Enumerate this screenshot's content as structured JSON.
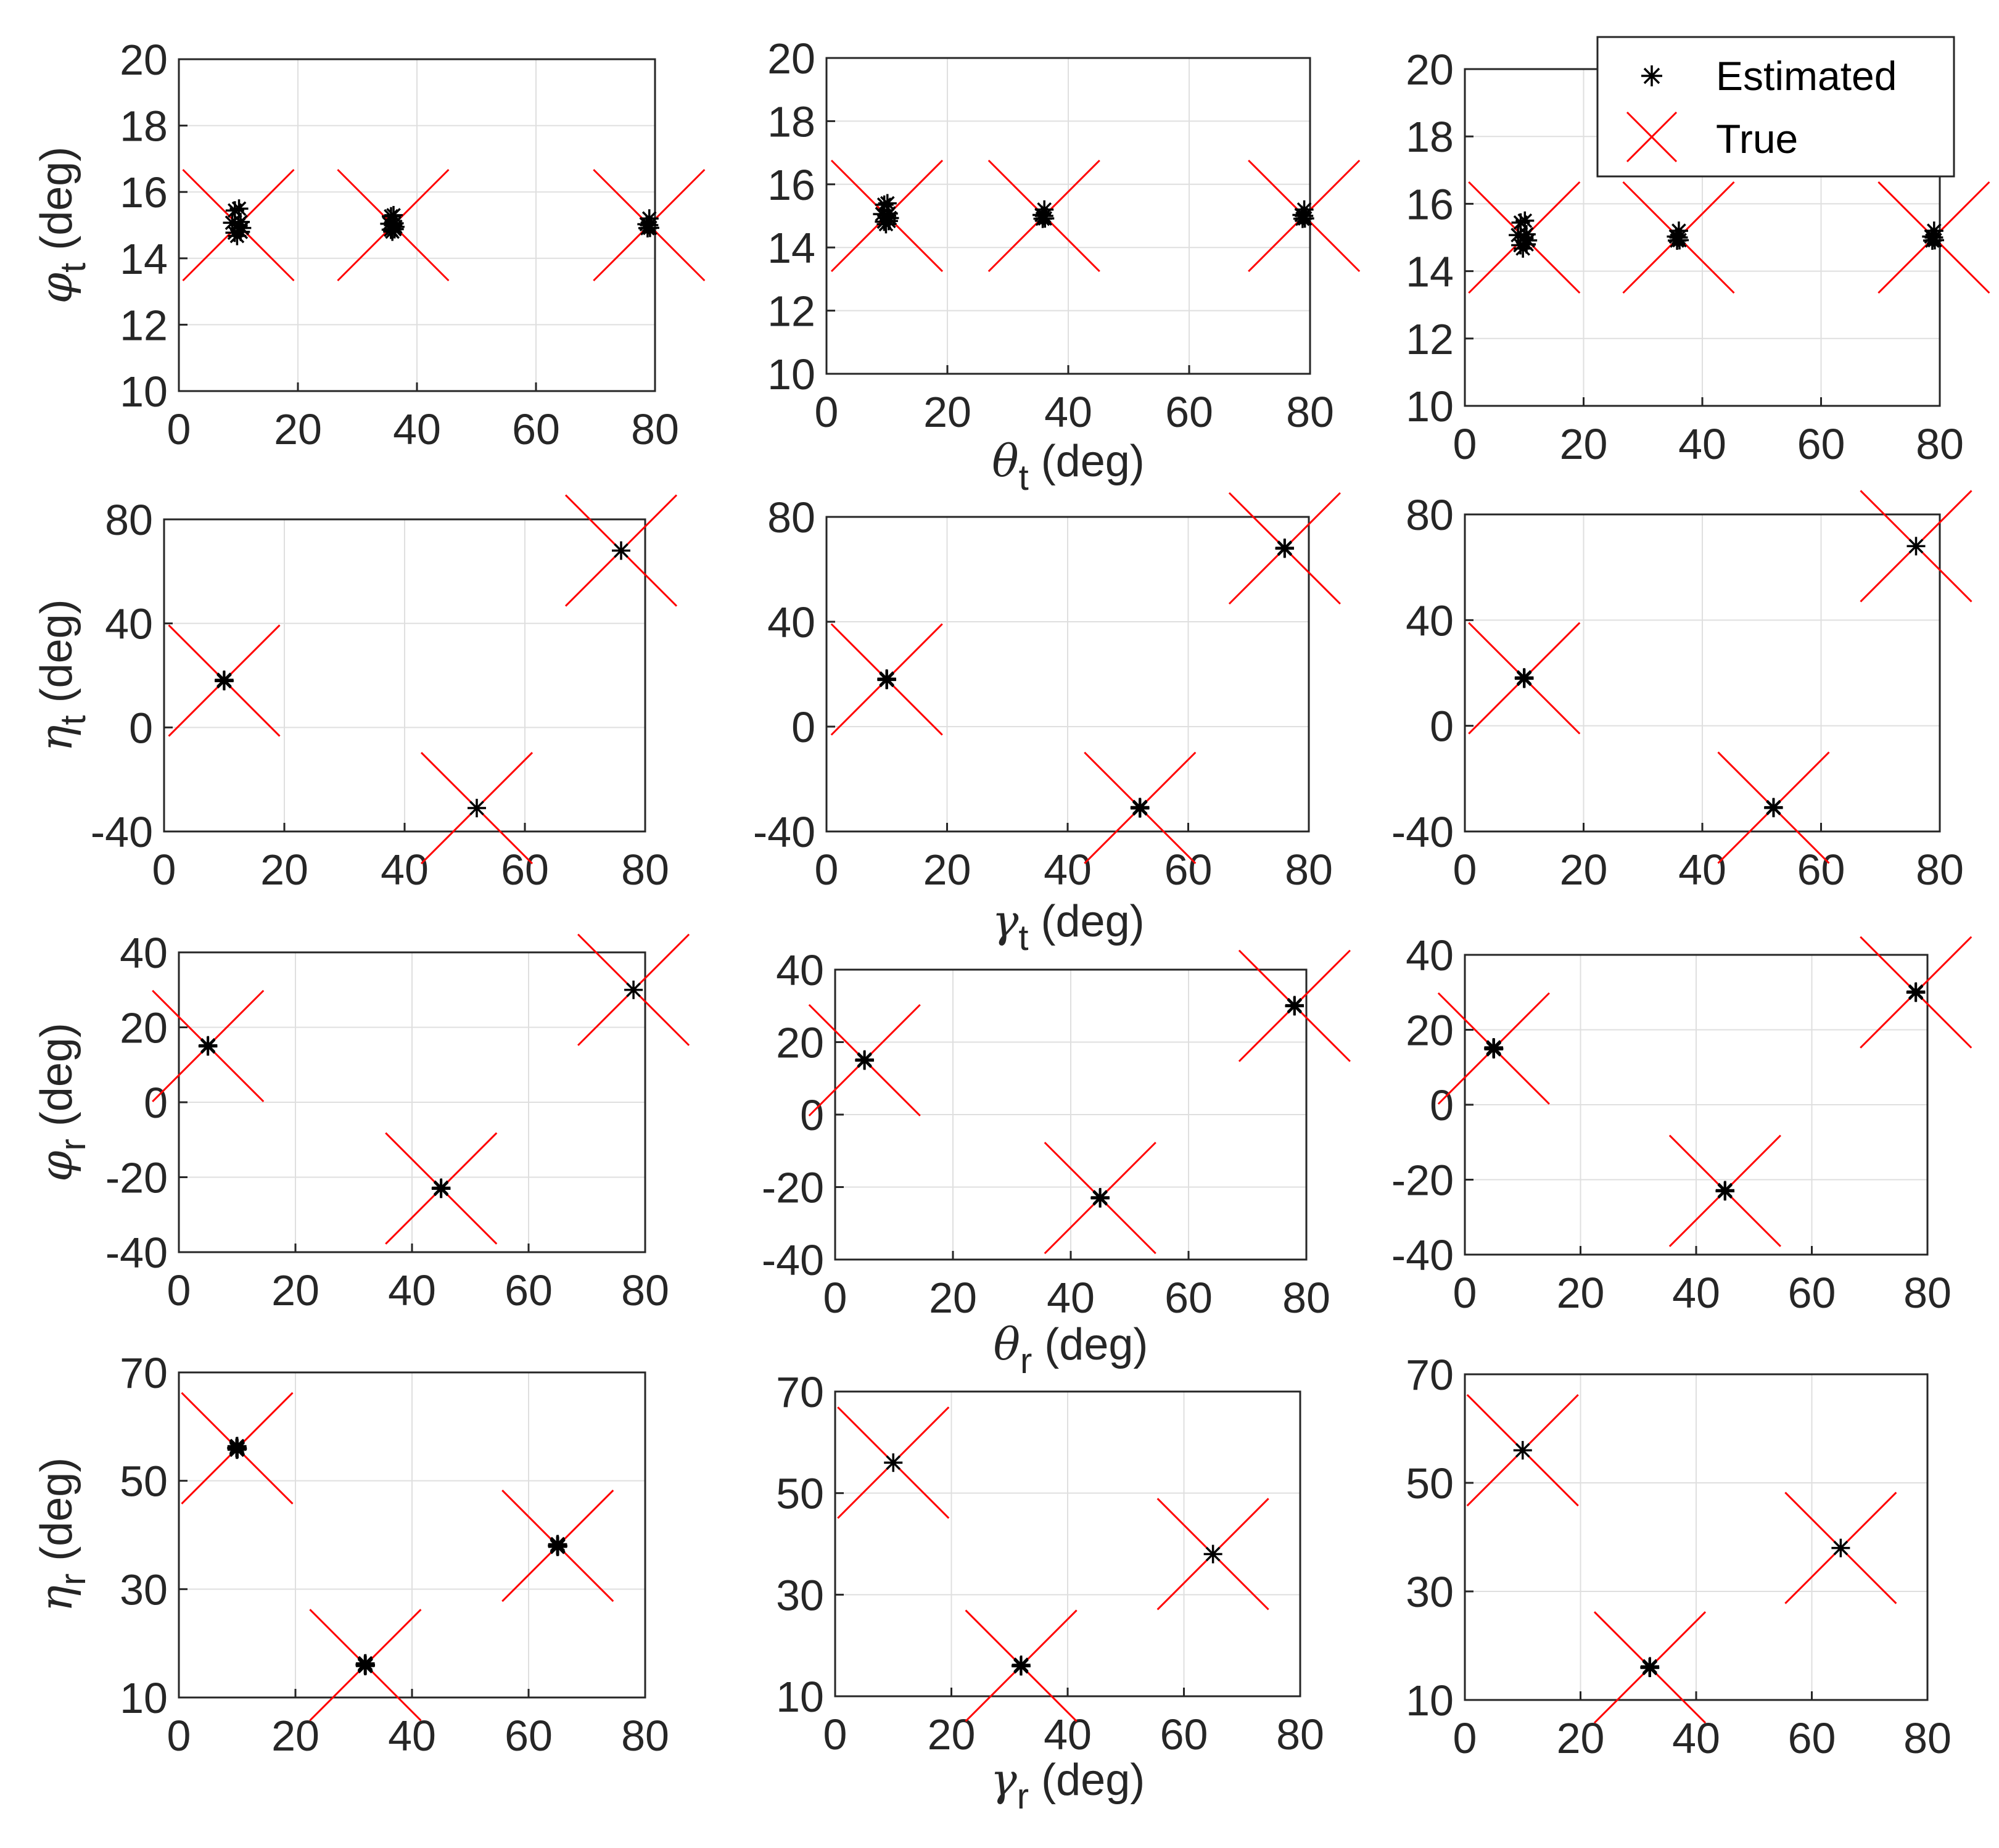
{
  "chart_data": {
    "type": "scatter",
    "layout": "4 rows x 3 columns of subplots",
    "legend": {
      "location": "top-right",
      "entries": [
        "Estimated",
        "True"
      ]
    },
    "colors": {
      "estimated": "#000000",
      "true": "#ff0000",
      "grid": "#dfdfdf",
      "axes": "#262626"
    },
    "rows": [
      {
        "ylabel": {
          "sym": "φ",
          "sub": "t",
          "unit": " (deg)"
        },
        "xlabel": {
          "sym": "θ",
          "sub": "t",
          "unit": " (deg)"
        },
        "xlim": [
          0,
          80
        ],
        "ylim": [
          10,
          20
        ],
        "xticks": [
          0,
          20,
          40,
          60,
          80
        ],
        "yticks": [
          10,
          12,
          14,
          16,
          18,
          20
        ],
        "true_points": [
          {
            "x": 10,
            "y": 15
          },
          {
            "x": 36,
            "y": 15
          },
          {
            "x": 79,
            "y": 15
          }
        ]
      },
      {
        "ylabel": {
          "sym": "η",
          "sub": "t",
          "unit": " (deg)"
        },
        "xlabel": {
          "sym": "γ",
          "sub": "t",
          "unit": " (deg)"
        },
        "xlim": [
          0,
          80
        ],
        "ylim": [
          -40,
          80
        ],
        "xticks": [
          0,
          20,
          40,
          60,
          80
        ],
        "yticks": [
          -40,
          0,
          40,
          80
        ],
        "true_points": [
          {
            "x": 10,
            "y": 18
          },
          {
            "x": 52,
            "y": -31
          },
          {
            "x": 76,
            "y": 68
          }
        ]
      },
      {
        "ylabel": {
          "sym": "φ",
          "sub": "r",
          "unit": " (deg)"
        },
        "xlabel": {
          "sym": "θ",
          "sub": "r",
          "unit": " (deg)"
        },
        "xlim": [
          0,
          80
        ],
        "ylim": [
          -40,
          40
        ],
        "xticks": [
          0,
          20,
          40,
          60,
          80
        ],
        "yticks": [
          -40,
          -20,
          0,
          20,
          40
        ],
        "true_points": [
          {
            "x": 5,
            "y": 15
          },
          {
            "x": 45,
            "y": -23
          },
          {
            "x": 78,
            "y": 30
          }
        ]
      },
      {
        "ylabel": {
          "sym": "η",
          "sub": "r",
          "unit": " (deg)"
        },
        "xlabel": {
          "sym": "γ",
          "sub": "r",
          "unit": " (deg)"
        },
        "xlim": [
          0,
          80
        ],
        "ylim": [
          10,
          70
        ],
        "xticks": [
          0,
          20,
          40,
          60,
          80
        ],
        "yticks": [
          10,
          30,
          50,
          70
        ],
        "true_points": [
          {
            "x": 10,
            "y": 56
          },
          {
            "x": 32,
            "y": 16
          },
          {
            "x": 65,
            "y": 38
          }
        ]
      }
    ],
    "estimated_spread": [
      [
        [
          0.5,
          0.3,
          0.2
        ],
        [
          0.4,
          0.2,
          0.2
        ],
        [
          0.5,
          0.2,
          0.2
        ]
      ],
      [
        [
          0.3,
          0.1,
          0.1
        ],
        [
          0.3,
          0.3,
          0.2
        ],
        [
          0.3,
          0.2,
          0.1
        ]
      ],
      [
        [
          0.2,
          0.2,
          0.1
        ],
        [
          0.2,
          0.2,
          0.2
        ],
        [
          0.3,
          0.2,
          0.2
        ]
      ],
      [
        [
          0.4,
          0.3,
          0.3
        ],
        [
          0.1,
          0.2,
          0.1
        ],
        [
          0.1,
          0.2,
          0.1
        ]
      ]
    ]
  }
}
